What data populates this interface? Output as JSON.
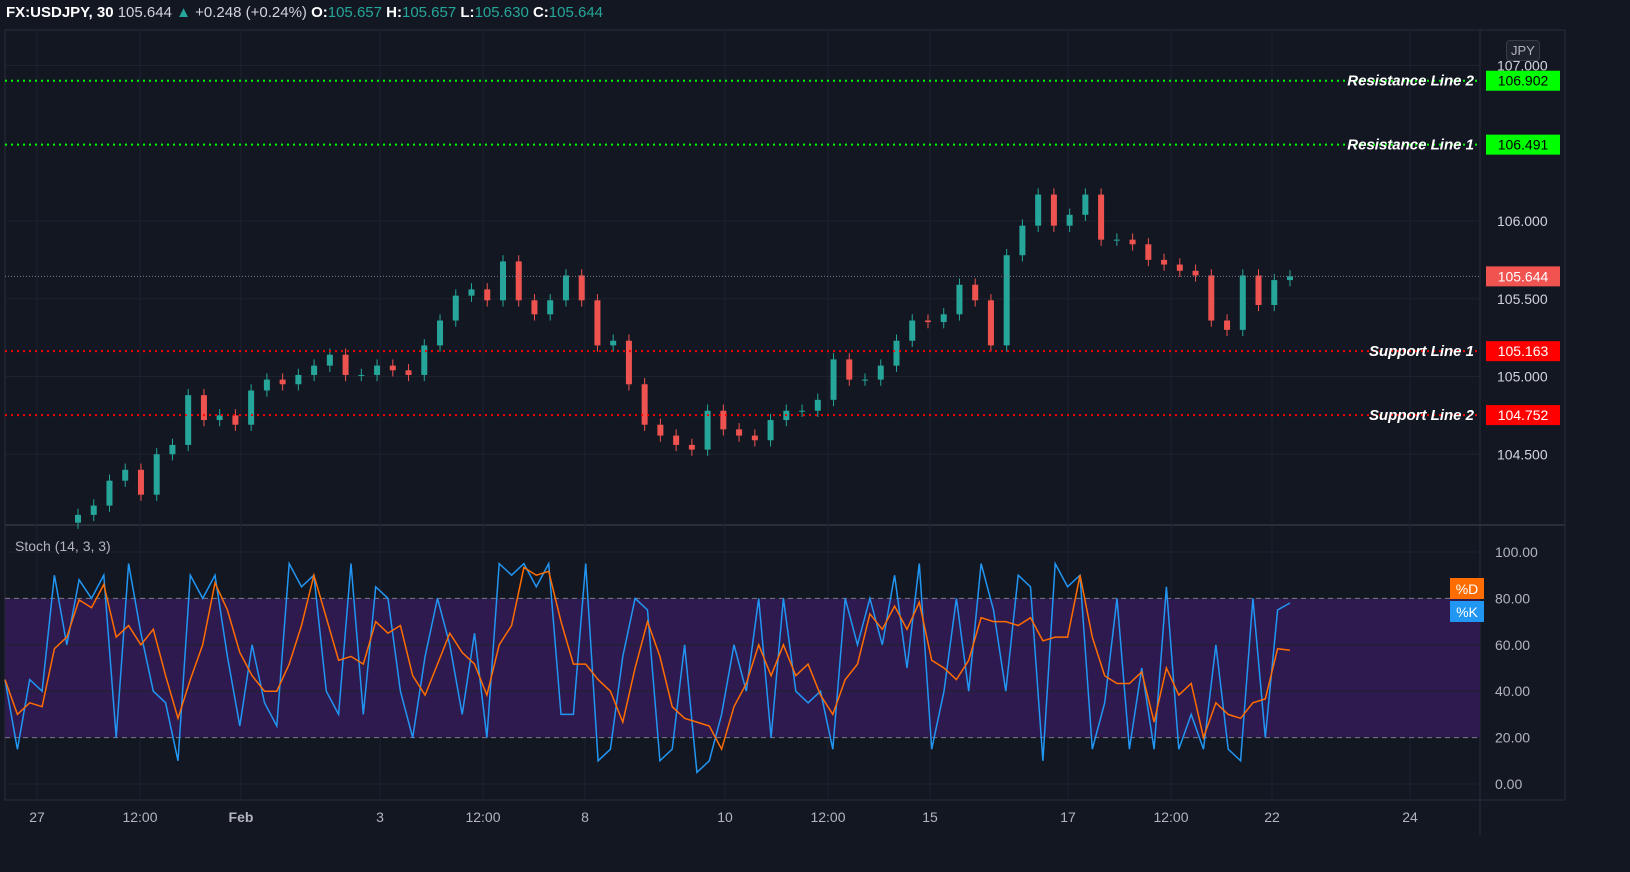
{
  "header": {
    "symbol": "FX:USDJPY, 30",
    "last": "105.644",
    "arrow": "▲",
    "change": "+0.248 (+0.24%)",
    "o_label": "O:",
    "o": "105.657",
    "h_label": "H:",
    "h": "105.657",
    "l_label": "L:",
    "l": "105.630",
    "c_label": "C:",
    "c": "105.644"
  },
  "currency": "JPY",
  "colors": {
    "background": "#131722",
    "up": "#26a69a",
    "down": "#ef5350",
    "resistance": "#00ff00",
    "support": "#ff0000",
    "k": "#2196f3",
    "d": "#ff6d00",
    "band": "#2e1a4f",
    "last_price": "#f05350"
  },
  "chart_data": [
    {
      "type": "candlestick",
      "title": "FX:USDJPY, 30",
      "price_ticks": [
        "104.500",
        "105.000",
        "105.500",
        "106.000",
        "107.000"
      ],
      "time_ticks": [
        "27",
        "12:00",
        "Feb",
        "3",
        "12:00",
        "8",
        "10",
        "12:00",
        "15",
        "17",
        "12:00",
        "22",
        "24"
      ],
      "last_price": "105.644",
      "closes": [
        104.11,
        104.17,
        104.33,
        104.4,
        104.24,
        104.5,
        104.56,
        104.88,
        104.72,
        104.75,
        104.69,
        104.91,
        104.98,
        104.95,
        105.01,
        105.07,
        105.14,
        105.01,
        105.01,
        105.07,
        105.04,
        105.01,
        105.2,
        105.36,
        105.52,
        105.56,
        105.49,
        105.74,
        105.49,
        105.4,
        105.49,
        105.65,
        105.49,
        105.2,
        105.23,
        104.95,
        104.69,
        104.62,
        104.56,
        104.53,
        104.78,
        104.66,
        104.62,
        104.59,
        104.72,
        104.78,
        104.78,
        104.85,
        105.11,
        104.98,
        104.98,
        105.07,
        105.23,
        105.36,
        105.35,
        105.4,
        105.59,
        105.49,
        105.2,
        105.78,
        105.97,
        106.17,
        105.97,
        106.04,
        106.17,
        105.88,
        105.88,
        105.85,
        105.75,
        105.72,
        105.68,
        105.65,
        105.36,
        105.3,
        105.65,
        105.46,
        105.62,
        105.644
      ],
      "levels": [
        {
          "label": "Resistance Line 2",
          "value": 106.902,
          "text": "106.902",
          "kind": "resistance"
        },
        {
          "label": "Resistance Line 1",
          "value": 106.491,
          "text": "106.491",
          "kind": "resistance"
        },
        {
          "label": "Support Line 1",
          "value": 105.163,
          "text": "105.163",
          "kind": "support"
        },
        {
          "label": "Support Line 2",
          "value": 104.752,
          "text": "104.752",
          "kind": "support"
        }
      ]
    },
    {
      "type": "line",
      "title": "Stoch (14, 3, 3)",
      "ylim": [
        0,
        100
      ],
      "bands": [
        20,
        80
      ],
      "y_ticks": [
        "100.00",
        "80.00",
        "60.00",
        "40.00",
        "20.00",
        "0.00"
      ],
      "series": [
        {
          "name": "%K"
        },
        {
          "name": "%D"
        }
      ],
      "k": [
        45,
        15,
        45,
        40,
        90,
        60,
        88,
        80,
        90,
        20,
        95,
        65,
        40,
        35,
        10,
        90,
        80,
        90,
        55,
        25,
        60,
        35,
        25,
        95,
        85,
        90,
        40,
        30,
        95,
        30,
        85,
        80,
        40,
        20,
        55,
        80,
        60,
        30,
        65,
        20,
        95,
        90,
        95,
        85,
        95,
        30,
        30,
        95,
        10,
        15,
        55,
        80,
        75,
        10,
        15,
        60,
        5,
        10,
        30,
        60,
        40,
        80,
        20,
        80,
        40,
        35,
        40,
        15,
        80,
        60,
        80,
        60,
        90,
        50,
        95,
        15,
        40,
        80,
        40,
        95,
        75,
        40,
        90,
        85,
        10,
        95,
        85,
        90,
        15,
        35,
        80,
        15,
        50,
        15,
        85,
        15,
        30,
        15,
        60,
        15,
        10,
        80,
        20,
        75,
        78
      ]
    }
  ],
  "stoch_title": "Stoch (14, 3, 3)"
}
